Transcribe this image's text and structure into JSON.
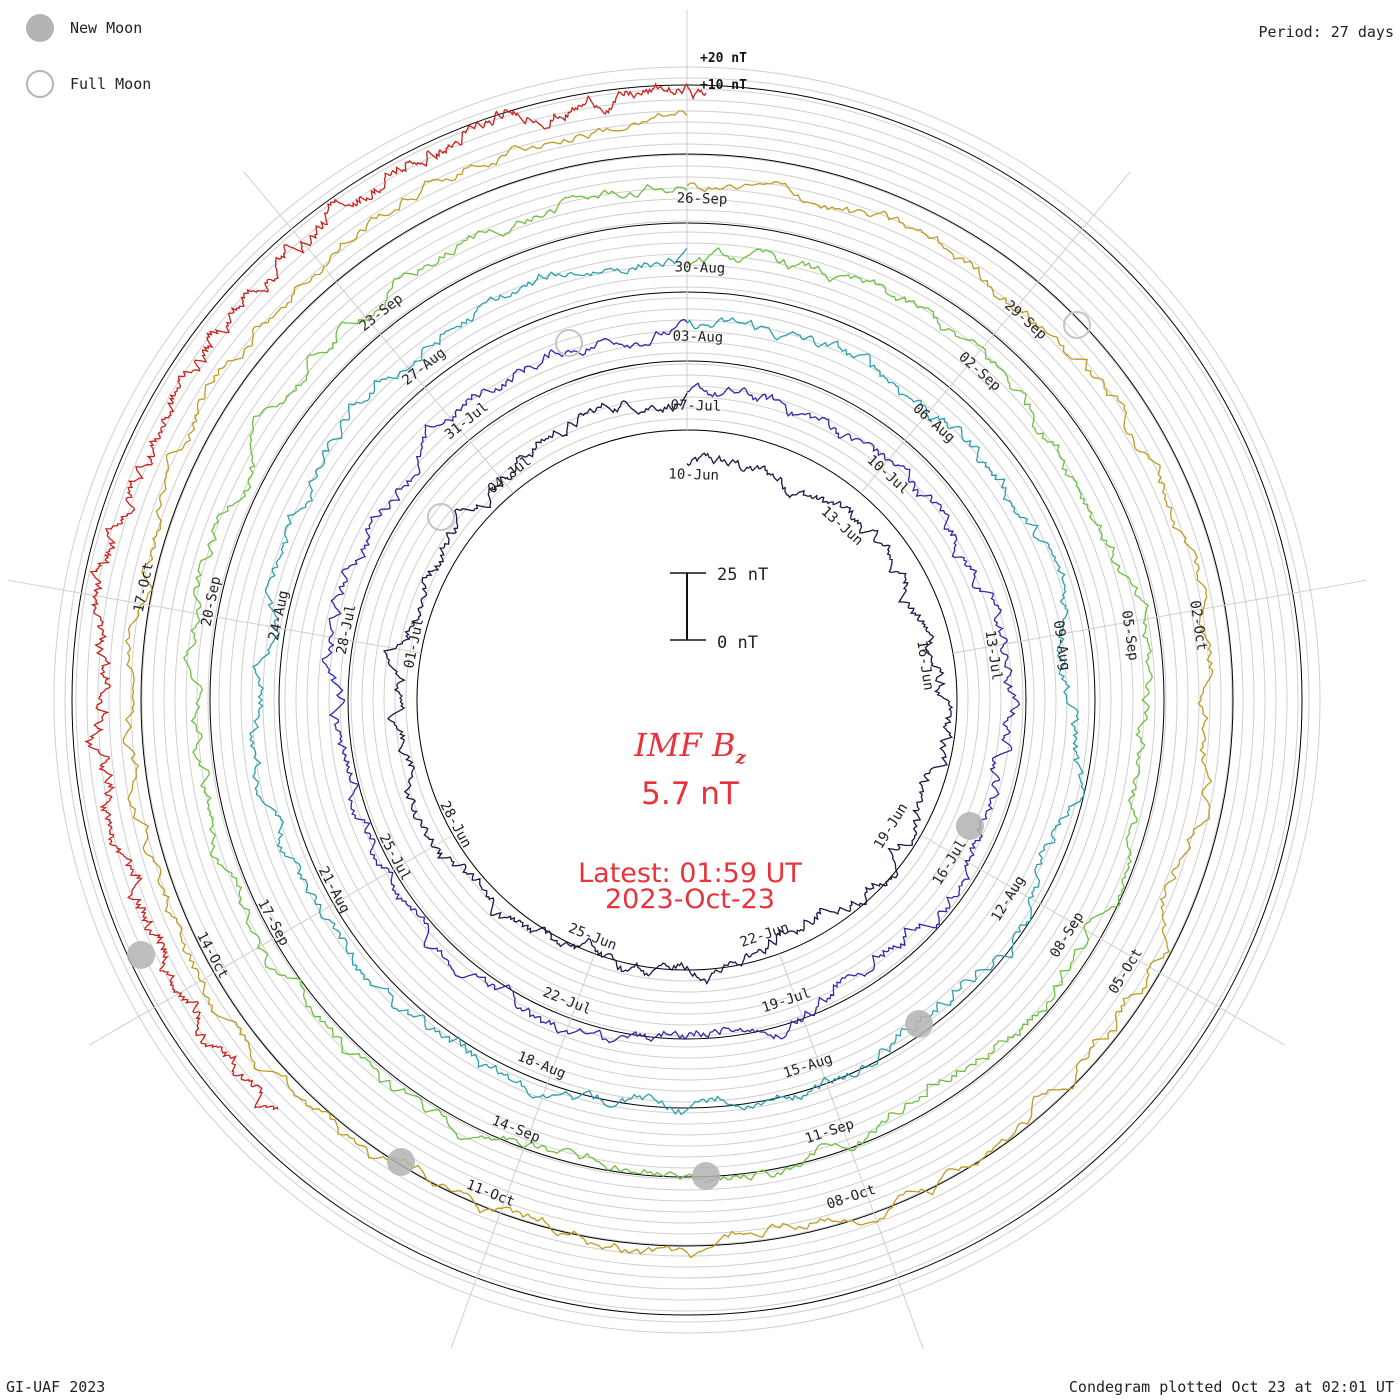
{
  "legend": {
    "new_moon": {
      "label": "New Moon",
      "color": "#b3b3b3"
    },
    "full_moon": {
      "label": "Full Moon",
      "color": "#b3b3b3"
    }
  },
  "period": "Period: 27 days",
  "footer": {
    "left": "GI-UAF 2023",
    "right": "Condegram plotted Oct 23 at 02:01 UT"
  },
  "center": {
    "title": "IMF B",
    "title_sub": "z",
    "value": "5.7 nT",
    "latest": "Latest: 01:59 UT",
    "date": "2023-Oct-23",
    "color": "#e8323c"
  },
  "chart_data": {
    "type": "line",
    "title": "IMF Bz condegram",
    "period_days": 27,
    "scale_bar": {
      "top_label": "25 nT",
      "bottom_label": "0 nT",
      "range_nT": [
        0,
        25
      ]
    },
    "ring_labels": [
      "+20 nT",
      "+10 nT"
    ],
    "rotations": [
      {
        "index": 1,
        "color": "#221144",
        "date_labels": [
          "10-Jun",
          "13-Jun",
          "16-Jun",
          "19-Jun",
          "22-Jun",
          "25-Jun",
          "28-Jun",
          "01-Jul",
          "04-Jul"
        ]
      },
      {
        "index": 2,
        "color": "#2a2aaa",
        "date_labels": [
          "07-Jul",
          "10-Jul",
          "13-Jul",
          "16-Jul",
          "19-Jul",
          "22-Jul",
          "25-Jul",
          "28-Jul",
          "31-Jul"
        ]
      },
      {
        "index": 3,
        "color": "#2a9fb0",
        "date_labels": [
          "03-Aug",
          "06-Aug",
          "09-Aug",
          "12-Aug",
          "15-Aug",
          "18-Aug",
          "21-Aug",
          "24-Aug",
          "27-Aug"
        ]
      },
      {
        "index": 4,
        "color": "#6cc040",
        "date_labels": [
          "30-Aug",
          "02-Sep",
          "05-Sep",
          "08-Sep",
          "11-Sep",
          "14-Sep",
          "17-Sep",
          "20-Sep",
          "23-Sep"
        ]
      },
      {
        "index": 5,
        "color": "#c09a20",
        "date_labels": [
          "26-Sep",
          "29-Sep",
          "02-Oct",
          "05-Oct",
          "08-Oct",
          "11-Oct",
          "14-Oct",
          "17-Oct"
        ]
      },
      {
        "index": 6,
        "color": "#c8201c",
        "date_labels": []
      }
    ]
  }
}
